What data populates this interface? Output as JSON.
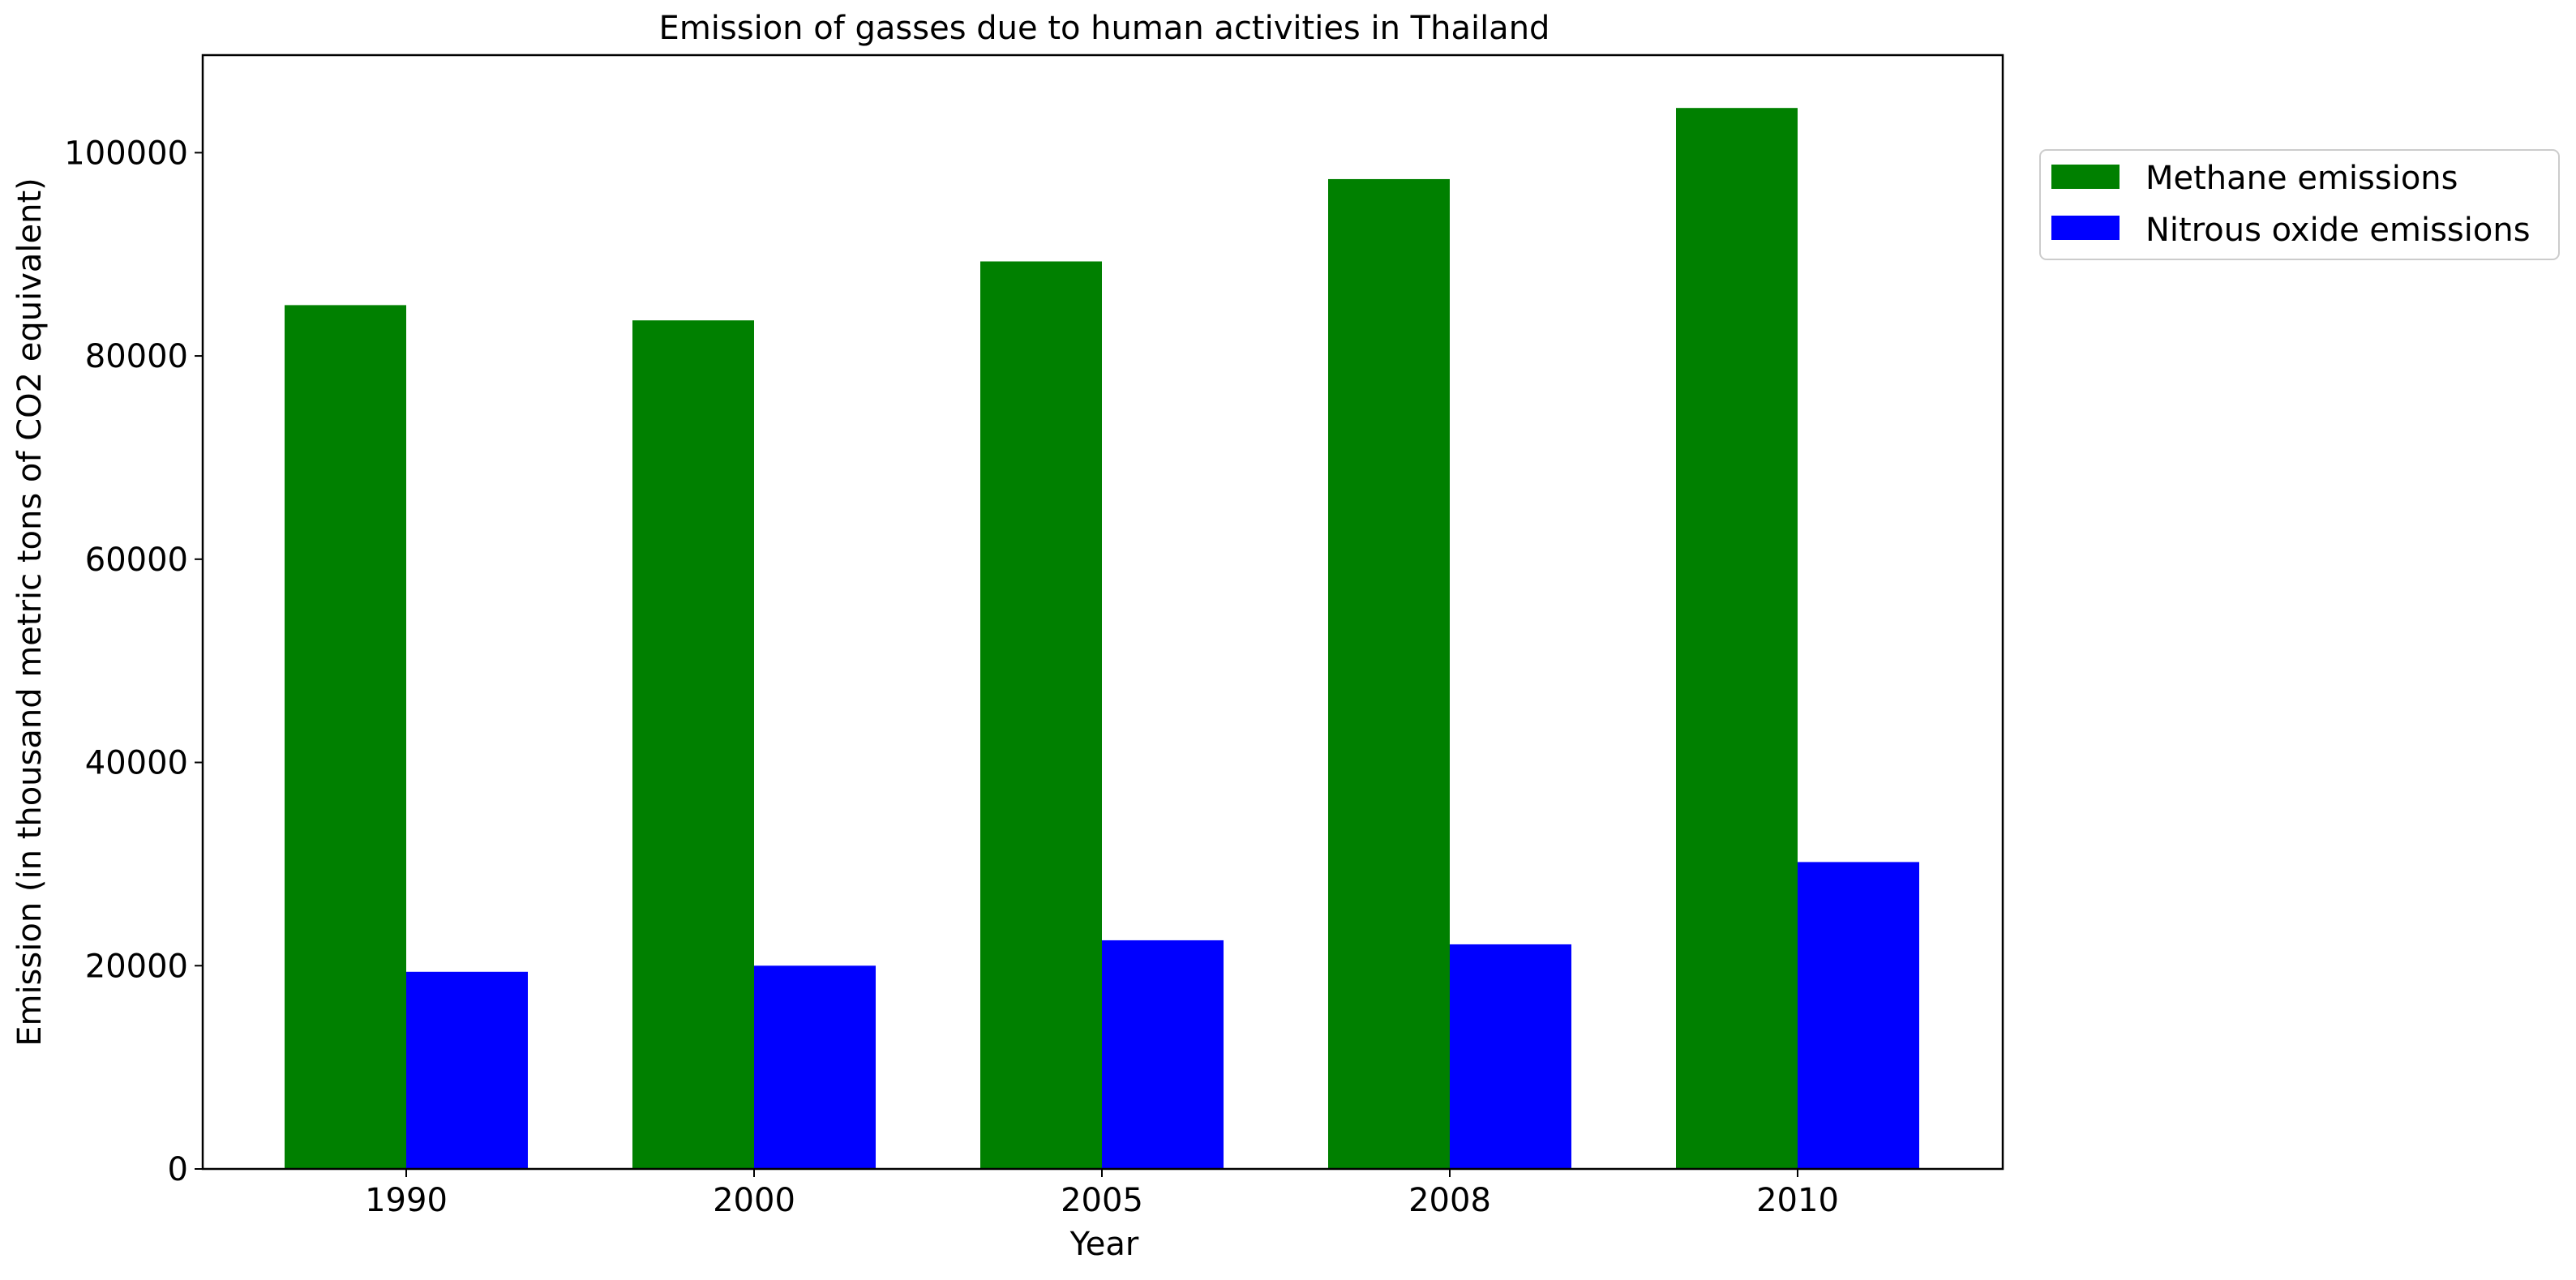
{
  "chart_data": {
    "type": "bar",
    "title": "Emission of gasses due to human activities in Thailand",
    "xlabel": "Year",
    "ylabel": "Emission (in thousand metric tons of CO2 equivalent)",
    "categories": [
      "1990",
      "2000",
      "2005",
      "2008",
      "2010"
    ],
    "series": [
      {
        "name": "Methane emissions",
        "color": "#008000",
        "values": [
          85000,
          83500,
          89300,
          97400,
          104400
        ]
      },
      {
        "name": "Nitrous oxide emissions",
        "color": "#0000ff",
        "values": [
          19400,
          20000,
          22500,
          22100,
          30200
        ]
      }
    ],
    "ylim": [
      0,
      109600
    ],
    "yticks": [
      0,
      20000,
      40000,
      60000,
      80000,
      100000
    ],
    "ytick_labels": [
      "0",
      "20000",
      "40000",
      "60000",
      "80000",
      "100000"
    ],
    "grid": false,
    "legend_position": "outside top-right"
  }
}
